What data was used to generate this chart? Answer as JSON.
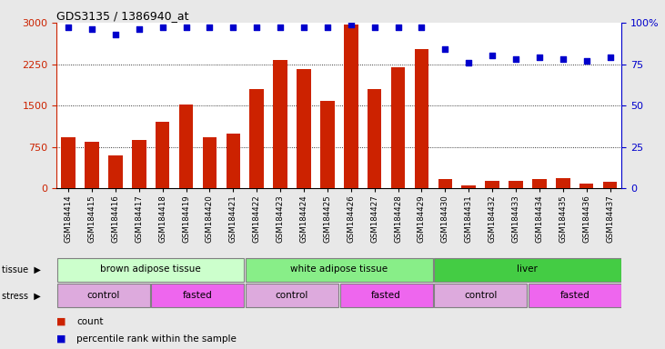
{
  "title": "GDS3135 / 1386940_at",
  "samples": [
    "GSM184414",
    "GSM184415",
    "GSM184416",
    "GSM184417",
    "GSM184418",
    "GSM184419",
    "GSM184420",
    "GSM184421",
    "GSM184422",
    "GSM184423",
    "GSM184424",
    "GSM184425",
    "GSM184426",
    "GSM184427",
    "GSM184428",
    "GSM184429",
    "GSM184430",
    "GSM184431",
    "GSM184432",
    "GSM184433",
    "GSM184434",
    "GSM184435",
    "GSM184436",
    "GSM184437"
  ],
  "counts": [
    920,
    840,
    590,
    880,
    1200,
    1520,
    920,
    1000,
    1800,
    2320,
    2160,
    1580,
    2970,
    1800,
    2200,
    2530,
    170,
    60,
    130,
    130,
    170,
    190,
    80,
    120
  ],
  "percentile": [
    97,
    96,
    93,
    96,
    97,
    97,
    97,
    97,
    97,
    97,
    97,
    97,
    99,
    97,
    97,
    97,
    84,
    76,
    80,
    78,
    79,
    78,
    77,
    79
  ],
  "bar_color": "#cc2200",
  "dot_color": "#0000cc",
  "ylim_left": [
    0,
    3000
  ],
  "ylim_right": [
    0,
    100
  ],
  "yticks_left": [
    0,
    750,
    1500,
    2250,
    3000
  ],
  "yticks_right": [
    0,
    25,
    50,
    75,
    100
  ],
  "tissue_groups": [
    {
      "label": "brown adipose tissue",
      "start": 0,
      "end": 8,
      "color": "#ccffcc"
    },
    {
      "label": "white adipose tissue",
      "start": 8,
      "end": 16,
      "color": "#88ee88"
    },
    {
      "label": "liver",
      "start": 16,
      "end": 24,
      "color": "#44cc44"
    }
  ],
  "stress_groups": [
    {
      "label": "control",
      "start": 0,
      "end": 4,
      "color": "#ddaadd"
    },
    {
      "label": "fasted",
      "start": 4,
      "end": 8,
      "color": "#ee66ee"
    },
    {
      "label": "control",
      "start": 8,
      "end": 12,
      "color": "#ddaadd"
    },
    {
      "label": "fasted",
      "start": 12,
      "end": 16,
      "color": "#ee66ee"
    },
    {
      "label": "control",
      "start": 16,
      "end": 20,
      "color": "#ddaadd"
    },
    {
      "label": "fasted",
      "start": 20,
      "end": 24,
      "color": "#ee66ee"
    }
  ],
  "bg_color": "#e8e8e8",
  "plot_bg": "#ffffff",
  "grid_color": "#000000"
}
